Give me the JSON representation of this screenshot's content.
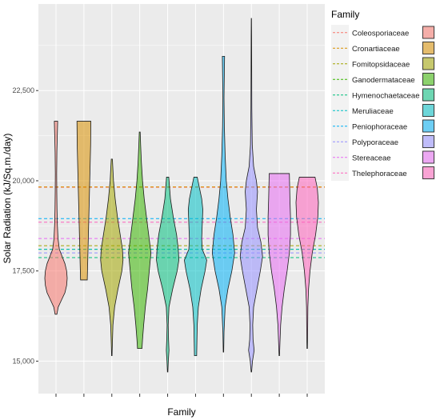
{
  "chart_data": {
    "type": "violin",
    "title": "",
    "xlabel": "Family",
    "ylabel": "Solar Radiation (kJ/Sq.m./day)",
    "ylim": [
      14100,
      24900
    ],
    "yticks": [
      15000,
      17500,
      20000,
      22500
    ],
    "ytick_labels": [
      "15,000",
      "17,500",
      "20,000",
      "22,500"
    ],
    "xtick_labels": [],
    "grid": true,
    "legend": {
      "title": "Family",
      "placement": "right"
    },
    "series": [
      {
        "name": "Coleosporiaceae",
        "color": "#F8766D",
        "mean": 19820,
        "min": 16300,
        "max": 21650,
        "profile": [
          [
            16300,
            0.08
          ],
          [
            16500,
            0.2
          ],
          [
            16700,
            0.5
          ],
          [
            16900,
            0.8
          ],
          [
            17100,
            0.95
          ],
          [
            17300,
            1.0
          ],
          [
            17500,
            0.95
          ],
          [
            17700,
            0.8
          ],
          [
            17900,
            0.55
          ],
          [
            18100,
            0.3
          ],
          [
            18400,
            0.18
          ],
          [
            18800,
            0.12
          ],
          [
            19200,
            0.09
          ],
          [
            19700,
            0.07
          ],
          [
            20200,
            0.06
          ],
          [
            20800,
            0.08
          ],
          [
            21300,
            0.12
          ],
          [
            21650,
            0.15
          ]
        ]
      },
      {
        "name": "Cronartiaceae",
        "color": "#D89000",
        "mean": 19830,
        "min": 17250,
        "max": 21650,
        "profile": [
          [
            17250,
            0.3
          ],
          [
            17500,
            0.32
          ],
          [
            18000,
            0.36
          ],
          [
            18500,
            0.4
          ],
          [
            19000,
            0.44
          ],
          [
            19500,
            0.48
          ],
          [
            20000,
            0.52
          ],
          [
            20500,
            0.56
          ],
          [
            21000,
            0.6
          ],
          [
            21650,
            0.62
          ]
        ]
      },
      {
        "name": "Fomitopsidaceae",
        "color": "#A3A500",
        "mean": 18200,
        "min": 15150,
        "max": 20600,
        "profile": [
          [
            15150,
            0.02
          ],
          [
            15500,
            0.05
          ],
          [
            16000,
            0.1
          ],
          [
            16500,
            0.25
          ],
          [
            17000,
            0.55
          ],
          [
            17500,
            0.9
          ],
          [
            17800,
            1.0
          ],
          [
            18100,
            0.95
          ],
          [
            18500,
            0.75
          ],
          [
            19000,
            0.5
          ],
          [
            19500,
            0.3
          ],
          [
            20000,
            0.15
          ],
          [
            20600,
            0.05
          ]
        ]
      },
      {
        "name": "Ganodermataceae",
        "color": "#39B600",
        "mean": 18100,
        "min": 15350,
        "max": 21350,
        "profile": [
          [
            15350,
            0.2
          ],
          [
            15600,
            0.25
          ],
          [
            16000,
            0.35
          ],
          [
            16500,
            0.5
          ],
          [
            17000,
            0.7
          ],
          [
            17500,
            0.85
          ],
          [
            18000,
            1.0
          ],
          [
            18500,
            0.8
          ],
          [
            19000,
            0.6
          ],
          [
            19500,
            0.4
          ],
          [
            20000,
            0.25
          ],
          [
            20500,
            0.15
          ],
          [
            21000,
            0.08
          ],
          [
            21350,
            0.04
          ]
        ]
      },
      {
        "name": "Hymenochaetaceae",
        "color": "#00BF7D",
        "mean": 17870,
        "min": 14700,
        "max": 20100,
        "profile": [
          [
            14700,
            0.02
          ],
          [
            15000,
            0.06
          ],
          [
            15300,
            0.12
          ],
          [
            15600,
            0.08
          ],
          [
            16000,
            0.05
          ],
          [
            16500,
            0.12
          ],
          [
            17000,
            0.45
          ],
          [
            17500,
            0.85
          ],
          [
            17800,
            1.0
          ],
          [
            18100,
            0.95
          ],
          [
            18500,
            0.8
          ],
          [
            19000,
            0.5
          ],
          [
            19500,
            0.25
          ],
          [
            20100,
            0.1
          ]
        ]
      },
      {
        "name": "Meruliaceae",
        "color": "#00BFC4",
        "mean": 18100,
        "min": 15150,
        "max": 20100,
        "profile": [
          [
            15150,
            0.1
          ],
          [
            15500,
            0.12
          ],
          [
            16000,
            0.15
          ],
          [
            16500,
            0.25
          ],
          [
            17000,
            0.5
          ],
          [
            17500,
            0.85
          ],
          [
            17800,
            1.0
          ],
          [
            18100,
            0.6
          ],
          [
            18400,
            0.55
          ],
          [
            18800,
            0.6
          ],
          [
            19200,
            0.65
          ],
          [
            19500,
            0.55
          ],
          [
            19800,
            0.35
          ],
          [
            20100,
            0.15
          ]
        ]
      },
      {
        "name": "Peniophoraceae",
        "color": "#00B0F6",
        "mean": 18950,
        "min": 15250,
        "max": 23450,
        "profile": [
          [
            15250,
            0.02
          ],
          [
            15800,
            0.05
          ],
          [
            16500,
            0.15
          ],
          [
            17000,
            0.4
          ],
          [
            17500,
            0.75
          ],
          [
            18000,
            1.0
          ],
          [
            18500,
            0.85
          ],
          [
            19000,
            0.6
          ],
          [
            19500,
            0.4
          ],
          [
            20000,
            0.25
          ],
          [
            20700,
            0.15
          ],
          [
            21500,
            0.08
          ],
          [
            22300,
            0.05
          ],
          [
            23000,
            0.08
          ],
          [
            23450,
            0.1
          ]
        ]
      },
      {
        "name": "Polyporaceae",
        "color": "#9590FF",
        "mean": 18000,
        "min": 14700,
        "max": 24500,
        "profile": [
          [
            14700,
            0.02
          ],
          [
            15000,
            0.1
          ],
          [
            15300,
            0.25
          ],
          [
            15600,
            0.15
          ],
          [
            16000,
            0.12
          ],
          [
            16500,
            0.2
          ],
          [
            17000,
            0.5
          ],
          [
            17500,
            0.8
          ],
          [
            17900,
            1.0
          ],
          [
            18300,
            0.85
          ],
          [
            18700,
            0.55
          ],
          [
            19200,
            0.45
          ],
          [
            19700,
            0.55
          ],
          [
            20000,
            0.45
          ],
          [
            20400,
            0.2
          ],
          [
            21000,
            0.08
          ],
          [
            22000,
            0.04
          ],
          [
            23000,
            0.03
          ],
          [
            24000,
            0.02
          ],
          [
            24500,
            0.01
          ]
        ]
      },
      {
        "name": "Stereaceae",
        "color": "#E76BF3",
        "mean": 18400,
        "min": 15150,
        "max": 20200,
        "profile": [
          [
            15150,
            0.02
          ],
          [
            15500,
            0.06
          ],
          [
            16000,
            0.12
          ],
          [
            16500,
            0.25
          ],
          [
            17000,
            0.45
          ],
          [
            17500,
            0.7
          ],
          [
            18000,
            0.9
          ],
          [
            18500,
            1.0
          ],
          [
            19000,
            1.0
          ],
          [
            19500,
            0.95
          ],
          [
            20200,
            0.9
          ]
        ]
      },
      {
        "name": "Thelephoraceae",
        "color": "#FF62BC",
        "mean": 18850,
        "min": 15350,
        "max": 20100,
        "profile": [
          [
            15350,
            0.02
          ],
          [
            15800,
            0.04
          ],
          [
            16500,
            0.06
          ],
          [
            17000,
            0.12
          ],
          [
            17500,
            0.25
          ],
          [
            18000,
            0.45
          ],
          [
            18500,
            0.75
          ],
          [
            19000,
            0.95
          ],
          [
            19400,
            1.0
          ],
          [
            19800,
            0.9
          ],
          [
            20100,
            0.7
          ]
        ]
      }
    ]
  }
}
